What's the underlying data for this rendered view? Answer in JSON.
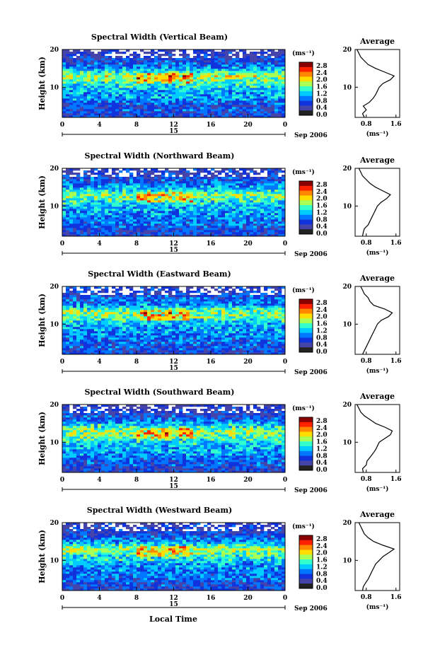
{
  "figure": {
    "xlabel": "Local Time",
    "x_ticks": [
      "0",
      "4",
      "8",
      "12",
      "16",
      "20",
      "0"
    ],
    "y_ticks": [
      "20",
      "10"
    ],
    "date_day": "15",
    "date_month": "Sep 2006",
    "avg_title": "Average",
    "avg_xticks": [
      "0.8",
      "1.6"
    ],
    "unit_label": "(ms⁻¹)",
    "colorbar_ticks": [
      "2.8",
      "2.4",
      "2.0",
      "1.6",
      "1.2",
      "0.8",
      "0.4",
      "0.0"
    ],
    "colorbar_colors": [
      "#8b0000",
      "#ff2200",
      "#ff8800",
      "#ffdd00",
      "#aaff55",
      "#33ffcc",
      "#00ccff",
      "#0077ff",
      "#1133dd",
      "#4444aa",
      "#222222"
    ]
  },
  "chart_data": [
    {
      "type": "heatmap",
      "title": "Spectral Width (Vertical Beam)",
      "ylabel": "Height (km)",
      "xlim": [
        0,
        24
      ],
      "ylim": [
        2,
        20
      ],
      "zlim": [
        0.0,
        3.0
      ],
      "average_profile": {
        "xlabel": "(ms⁻¹)",
        "xlim": [
          0.5,
          1.7
        ],
        "height": [
          2,
          3,
          4,
          5,
          6,
          7,
          8,
          9,
          10,
          11,
          12,
          13,
          14,
          15,
          16,
          17,
          18,
          19,
          20
        ],
        "width": [
          0.75,
          0.7,
          0.8,
          0.72,
          0.88,
          0.98,
          1.05,
          1.1,
          1.15,
          1.25,
          1.45,
          1.55,
          1.3,
          1.05,
          0.85,
          0.75,
          0.65,
          0.6,
          0.55
        ]
      }
    },
    {
      "type": "heatmap",
      "title": "Spectral Width (Northward Beam)",
      "ylabel": "Height (km)",
      "xlim": [
        0,
        24
      ],
      "ylim": [
        2,
        20
      ],
      "zlim": [
        0.0,
        3.0
      ],
      "average_profile": {
        "xlabel": "(ms⁻¹)",
        "xlim": [
          0.5,
          1.7
        ],
        "height": [
          2,
          3,
          4,
          5,
          6,
          7,
          8,
          9,
          10,
          11,
          12,
          13,
          14,
          15,
          16,
          17,
          18,
          19,
          20
        ],
        "width": [
          0.7,
          0.72,
          0.75,
          0.85,
          0.9,
          0.95,
          1.0,
          1.05,
          1.1,
          1.2,
          1.35,
          1.45,
          1.25,
          1.05,
          0.9,
          0.8,
          0.7,
          0.65,
          0.6
        ]
      }
    },
    {
      "type": "heatmap",
      "title": "Spectral Width (Eastward Beam)",
      "ylabel": "Height (km)",
      "xlim": [
        0,
        24
      ],
      "ylim": [
        2,
        20
      ],
      "zlim": [
        0.0,
        3.0
      ],
      "average_profile": {
        "xlabel": "(ms⁻¹)",
        "xlim": [
          0.5,
          1.7
        ],
        "height": [
          2,
          3,
          4,
          5,
          6,
          7,
          8,
          9,
          10,
          11,
          12,
          13,
          14,
          15,
          16,
          17,
          18,
          19,
          20
        ],
        "width": [
          0.7,
          0.75,
          0.8,
          0.85,
          0.9,
          0.95,
          1.0,
          1.05,
          1.1,
          1.2,
          1.4,
          1.5,
          1.3,
          1.0,
          0.9,
          0.85,
          0.75,
          0.7,
          0.65
        ]
      }
    },
    {
      "type": "heatmap",
      "title": "Spectral Width (Southward Beam)",
      "ylabel": "Height (km)",
      "xlim": [
        0,
        24
      ],
      "ylim": [
        2,
        20
      ],
      "zlim": [
        0.0,
        3.0
      ],
      "average_profile": {
        "xlabel": "(ms⁻¹)",
        "xlim": [
          0.5,
          1.7
        ],
        "height": [
          2,
          3,
          4,
          5,
          6,
          7,
          8,
          9,
          10,
          11,
          12,
          13,
          14,
          15,
          16,
          17,
          18,
          19,
          20
        ],
        "width": [
          0.72,
          0.7,
          0.8,
          0.82,
          0.9,
          0.98,
          1.05,
          1.1,
          1.15,
          1.3,
          1.45,
          1.5,
          1.3,
          1.05,
          0.9,
          0.75,
          0.65,
          0.6,
          0.55
        ]
      }
    },
    {
      "type": "heatmap",
      "title": "Spectral Width (Westward Beam)",
      "ylabel": "Height (km)",
      "xlim": [
        0,
        24
      ],
      "ylim": [
        2,
        20
      ],
      "zlim": [
        0.0,
        3.0
      ],
      "average_profile": {
        "xlabel": "(ms⁻¹)",
        "xlim": [
          0.5,
          1.7
        ],
        "height": [
          2,
          3,
          4,
          5,
          6,
          7,
          8,
          9,
          10,
          11,
          12,
          13,
          14,
          15,
          16,
          17,
          18,
          19,
          20
        ],
        "width": [
          0.7,
          0.72,
          0.78,
          0.85,
          0.9,
          0.95,
          1.0,
          1.05,
          1.15,
          1.25,
          1.4,
          1.55,
          1.25,
          1.0,
          0.85,
          0.75,
          0.7,
          0.65,
          0.6
        ]
      }
    }
  ]
}
